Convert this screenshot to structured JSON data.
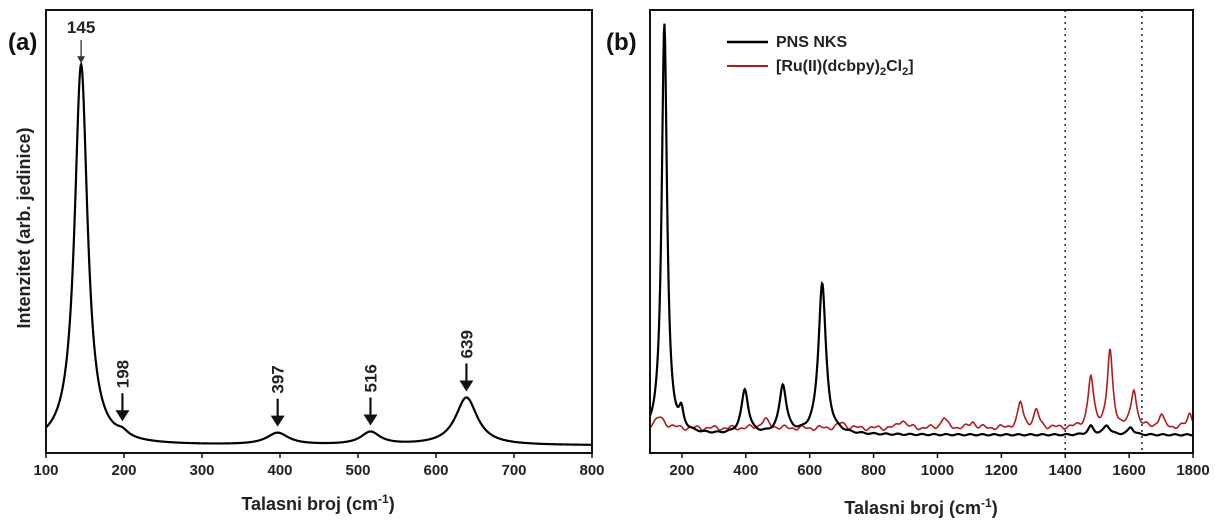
{
  "chart_data": [
    {
      "type": "line",
      "panel": "(a)",
      "xlabel": "Talasni broj (cm",
      "xlabel_sup": "-1",
      "xlabel_end": ")",
      "ylabel": "Intenzitet (arb. jedinice)",
      "xlim": [
        100,
        800
      ],
      "ylim": [
        0,
        100
      ],
      "xticks": [
        100,
        200,
        300,
        400,
        500,
        600,
        700,
        800
      ],
      "series": [
        {
          "color": "#000000",
          "peaks": [
            {
              "x": 145,
              "height": 100,
              "width": 10
            },
            {
              "x": 198,
              "height": 1.3,
              "width": 9
            },
            {
              "x": 397,
              "height": 3.1,
              "width": 17
            },
            {
              "x": 516,
              "height": 3.3,
              "width": 15
            },
            {
              "x": 639,
              "height": 12.5,
              "width": 17
            }
          ],
          "baseline": 0.4
        }
      ],
      "annotations": [
        {
          "text": "145",
          "x": 145,
          "rotated": false
        },
        {
          "text": "198",
          "x": 198,
          "rotated": true
        },
        {
          "text": "397",
          "x": 397,
          "rotated": true
        },
        {
          "text": "516",
          "x": 516,
          "rotated": true
        },
        {
          "text": "639",
          "x": 639,
          "rotated": true
        }
      ]
    },
    {
      "type": "line",
      "panel": "(b)",
      "xlabel": "Talasni broj (cm",
      "xlabel_sup": "-1",
      "xlabel_end": ")",
      "xlim": [
        100,
        1800
      ],
      "ylim": [
        0,
        100
      ],
      "xticks": [
        200,
        400,
        600,
        800,
        1000,
        1200,
        1400,
        1600,
        1800
      ],
      "vlines": [
        1400,
        1640
      ],
      "series": [
        {
          "name": "PNS NKS",
          "color": "#000000",
          "peaks": [
            {
              "x": 145,
              "height": 98,
              "width": 10
            },
            {
              "x": 198,
              "height": 4,
              "width": 8
            },
            {
              "x": 397,
              "height": 10.5,
              "width": 13
            },
            {
              "x": 516,
              "height": 11.5,
              "width": 13
            },
            {
              "x": 639,
              "height": 36,
              "width": 14
            },
            {
              "x": 1480,
              "height": 2,
              "width": 10
            },
            {
              "x": 1530,
              "height": 2.2,
              "width": 12
            },
            {
              "x": 1605,
              "height": 1.8,
              "width": 10
            }
          ],
          "baseline": 1.2
        },
        {
          "name": "[Ru(II)(dcbpy)",
          "name_sub1": "2",
          "name_mid": "Cl",
          "name_sub2": "2",
          "name_end": "]",
          "color": "#b01c1c",
          "peaks": [
            {
              "x": 130,
              "height": 2.5,
              "width": 20
            },
            {
              "x": 460,
              "height": 2,
              "width": 15
            },
            {
              "x": 700,
              "height": 1.2,
              "width": 15
            },
            {
              "x": 890,
              "height": 2,
              "width": 12
            },
            {
              "x": 1020,
              "height": 2.5,
              "width": 10
            },
            {
              "x": 1110,
              "height": 1.5,
              "width": 10
            },
            {
              "x": 1260,
              "height": 6,
              "width": 10
            },
            {
              "x": 1310,
              "height": 4,
              "width": 10
            },
            {
              "x": 1480,
              "height": 12,
              "width": 10
            },
            {
              "x": 1540,
              "height": 18,
              "width": 10
            },
            {
              "x": 1615,
              "height": 9,
              "width": 10
            },
            {
              "x": 1700,
              "height": 3,
              "width": 10
            },
            {
              "x": 1790,
              "height": 3.5,
              "width": 10
            }
          ],
          "baseline": 2.8
        }
      ]
    }
  ]
}
